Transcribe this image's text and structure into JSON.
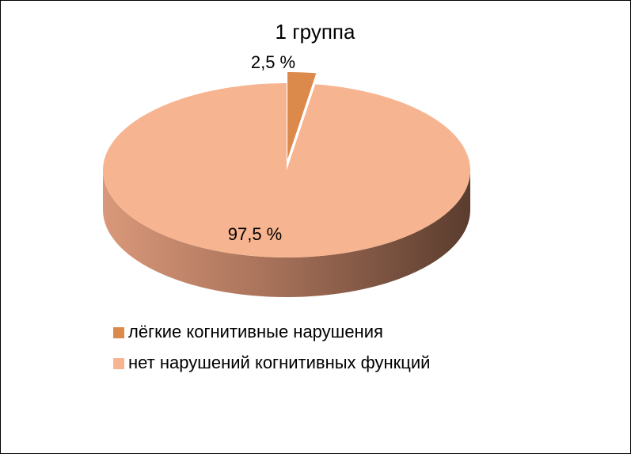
{
  "chart_data": {
    "type": "pie",
    "title": "1 группа",
    "categories": [
      "лёгкие когнитивные нарушения",
      "нет нарушений когнитивных функций"
    ],
    "values": [
      2.5,
      97.5
    ],
    "value_labels": [
      "2,5 %",
      "97,5 %"
    ],
    "colors": [
      "#dc8a4c",
      "#f7b490"
    ],
    "legend": "bottom"
  }
}
